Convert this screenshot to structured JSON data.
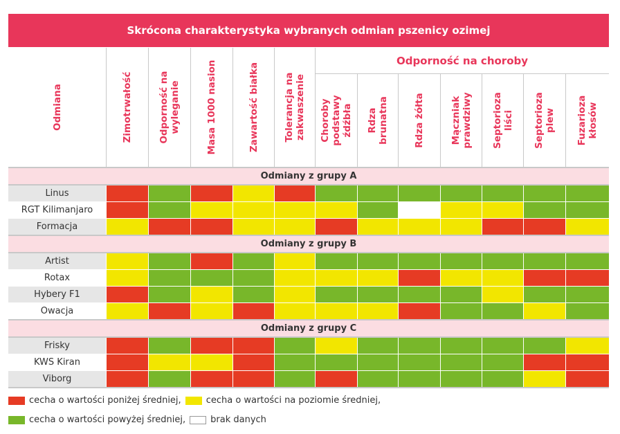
{
  "title": "Skrócona charakterystyka wybranych odmian pszenicy ozimej",
  "header": {
    "odmiana": "Odmiana",
    "disease_group": "Odporność na choroby",
    "columns": [
      "Zimotrwałość",
      "Odporność na\nwyleganie",
      "Masa 1000 nasion",
      "Zawartość białka",
      "Tolerancja na\nzakwaszenie",
      "Choroby\npodstawy\nźdźbła",
      "Rdza\nbrunatna",
      "Rdza żółta",
      "Mączniak\nprawdziwy",
      "Septorioza\nliści",
      "Septorioza\nplew",
      "Fuzarioza\nkłosów"
    ]
  },
  "colors": {
    "R": "#e63b24",
    "Y": "#f2e600",
    "G": "#78b72a",
    "W": "#ffffff",
    "accent": "#e8365a"
  },
  "groups": [
    {
      "label": "Odmiany z grupy A",
      "rows": [
        {
          "name": "Linus",
          "values": [
            "R",
            "G",
            "R",
            "Y",
            "R",
            "G",
            "G",
            "G",
            "G",
            "G",
            "G",
            "G"
          ]
        },
        {
          "name": "RGT Kilimanjaro",
          "values": [
            "R",
            "G",
            "Y",
            "Y",
            "Y",
            "Y",
            "G",
            "W",
            "Y",
            "Y",
            "G",
            "G"
          ]
        },
        {
          "name": "Formacja",
          "values": [
            "Y",
            "R",
            "R",
            "Y",
            "Y",
            "R",
            "Y",
            "Y",
            "Y",
            "R",
            "R",
            "Y"
          ]
        }
      ]
    },
    {
      "label": "Odmiany z grupy B",
      "rows": [
        {
          "name": "Artist",
          "values": [
            "Y",
            "G",
            "R",
            "G",
            "Y",
            "G",
            "G",
            "G",
            "G",
            "G",
            "G",
            "G"
          ]
        },
        {
          "name": "Rotax",
          "values": [
            "Y",
            "G",
            "G",
            "G",
            "Y",
            "Y",
            "Y",
            "R",
            "Y",
            "Y",
            "R",
            "R"
          ]
        },
        {
          "name": "Hybery F1",
          "values": [
            "R",
            "G",
            "Y",
            "G",
            "Y",
            "G",
            "G",
            "G",
            "G",
            "Y",
            "G",
            "G"
          ]
        },
        {
          "name": "Owacja",
          "values": [
            "Y",
            "R",
            "Y",
            "R",
            "Y",
            "Y",
            "Y",
            "R",
            "G",
            "G",
            "Y",
            "G"
          ]
        }
      ]
    },
    {
      "label": "Odmiany z grupy C",
      "rows": [
        {
          "name": "Frisky",
          "values": [
            "R",
            "G",
            "R",
            "R",
            "G",
            "Y",
            "G",
            "G",
            "G",
            "G",
            "G",
            "Y"
          ]
        },
        {
          "name": "KWS Kiran",
          "values": [
            "R",
            "Y",
            "Y",
            "R",
            "G",
            "G",
            "G",
            "G",
            "G",
            "G",
            "R",
            "R"
          ]
        },
        {
          "name": "Viborg",
          "values": [
            "R",
            "G",
            "R",
            "R",
            "G",
            "R",
            "G",
            "G",
            "G",
            "G",
            "Y",
            "R"
          ]
        }
      ]
    }
  ],
  "legend": {
    "below": "cecha o wartości poniżej średniej,",
    "average": "cecha o wartości na poziomie średniej,",
    "above": "cecha o wartości powyżej średniej,",
    "nodata": "brak danych"
  }
}
